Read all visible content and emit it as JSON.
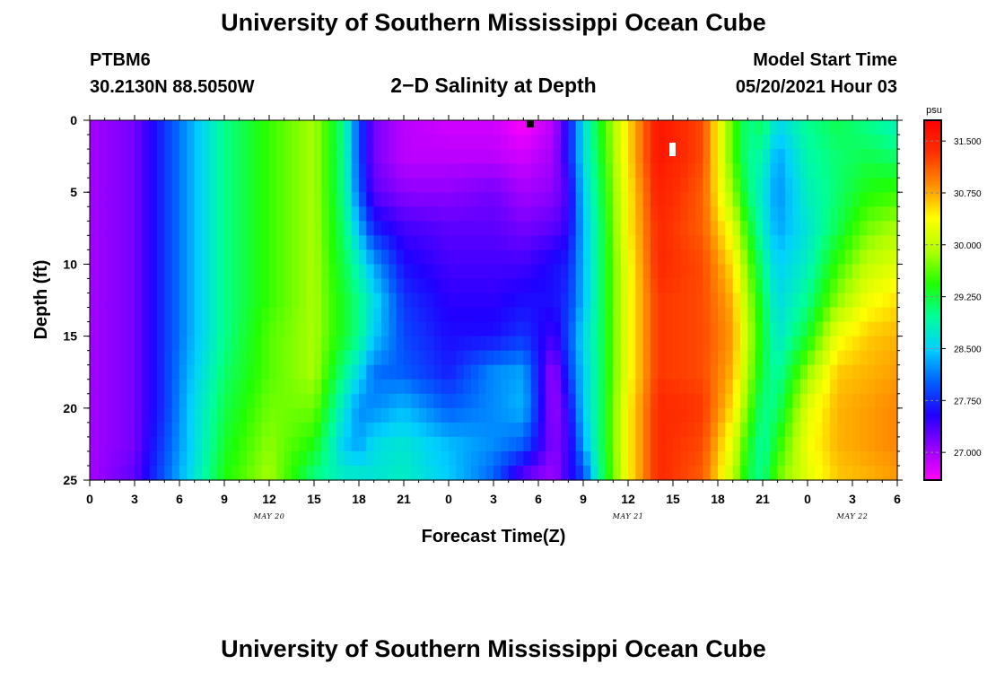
{
  "header": {
    "title": "University of Southern Mississippi Ocean Cube",
    "station_id": "PTBM6",
    "station_coords": "30.2130N  88.5050W",
    "plot_title": "2−D Salinity at Depth",
    "model_start_label": "Model Start Time",
    "model_start_time": "05/20/2021 Hour 03"
  },
  "footer": {
    "title": "University of Southern Mississippi Ocean Cube"
  },
  "chart_data": {
    "type": "heatmap",
    "title": "2−D Salinity at Depth",
    "xlabel": "Forecast Time(Z)",
    "ylabel": "Depth (ft)",
    "x_unit": "hours from 2021-05-20 00Z",
    "xlim": [
      0,
      54
    ],
    "ylim": [
      0,
      25
    ],
    "y_inverted": true,
    "x_ticks": [
      {
        "value": 0,
        "label": "0"
      },
      {
        "value": 3,
        "label": "3"
      },
      {
        "value": 6,
        "label": "6"
      },
      {
        "value": 9,
        "label": "9"
      },
      {
        "value": 12,
        "label": "12"
      },
      {
        "value": 15,
        "label": "15"
      },
      {
        "value": 18,
        "label": "18"
      },
      {
        "value": 21,
        "label": "21"
      },
      {
        "value": 24,
        "label": "0"
      },
      {
        "value": 27,
        "label": "3"
      },
      {
        "value": 30,
        "label": "6"
      },
      {
        "value": 33,
        "label": "9"
      },
      {
        "value": 36,
        "label": "12"
      },
      {
        "value": 39,
        "label": "15"
      },
      {
        "value": 42,
        "label": "18"
      },
      {
        "value": 45,
        "label": "21"
      },
      {
        "value": 48,
        "label": "0"
      },
      {
        "value": 51,
        "label": "3"
      },
      {
        "value": 54,
        "label": "6"
      }
    ],
    "x_minor_step": 1,
    "date_labels": [
      {
        "value": 12,
        "label": "MAY 20"
      },
      {
        "value": 36,
        "label": "MAY 21"
      },
      {
        "value": 51,
        "label": "MAY 22"
      }
    ],
    "y_ticks": [
      {
        "value": 0,
        "label": "0"
      },
      {
        "value": 5,
        "label": "5"
      },
      {
        "value": 10,
        "label": "10"
      },
      {
        "value": 15,
        "label": "15"
      },
      {
        "value": 20,
        "label": "20"
      },
      {
        "value": 25,
        "label": "25"
      }
    ],
    "y_minor_step": 1,
    "colorbar": {
      "unit": "psu",
      "min": 26.6,
      "max": 31.8,
      "ticks": [
        "31.500",
        "30.750",
        "30.000",
        "29.250",
        "28.500",
        "27.750",
        "27.000"
      ],
      "tick_values": [
        31.5,
        30.75,
        30.0,
        29.25,
        28.5,
        27.75,
        27.0
      ],
      "colors": [
        "#ff00ff",
        "#9400ff",
        "#2000ff",
        "#0060ff",
        "#00d0ff",
        "#00ff9a",
        "#20ff00",
        "#b0ff00",
        "#ffff00",
        "#ff9000",
        "#ff3000",
        "#ff0000"
      ]
    },
    "depth_levels": [
      0,
      2.5,
      5,
      7.5,
      10,
      12.5,
      15,
      17.5,
      20,
      22.5,
      25
    ],
    "time_columns": [
      {
        "t": 0,
        "s": [
          27.0,
          27.0,
          27.0,
          27.0,
          27.0,
          27.0,
          27.0,
          27.0,
          27.0,
          27.0,
          27.0
        ]
      },
      {
        "t": 3,
        "s": [
          27.2,
          27.2,
          27.2,
          27.2,
          27.2,
          27.2,
          27.2,
          27.2,
          27.2,
          27.2,
          27.3
        ]
      },
      {
        "t": 5,
        "s": [
          27.8,
          27.8,
          27.8,
          27.8,
          27.8,
          27.8,
          27.8,
          27.8,
          27.8,
          27.9,
          28.0
        ]
      },
      {
        "t": 7,
        "s": [
          28.4,
          28.4,
          28.4,
          28.4,
          28.4,
          28.4,
          28.4,
          28.5,
          28.6,
          28.6,
          28.7
        ]
      },
      {
        "t": 9,
        "s": [
          29.0,
          29.0,
          29.0,
          29.0,
          29.0,
          29.0,
          29.0,
          29.1,
          29.2,
          29.3,
          29.4
        ]
      },
      {
        "t": 12,
        "s": [
          29.5,
          29.5,
          29.5,
          29.5,
          29.5,
          29.5,
          29.6,
          29.6,
          29.7,
          29.8,
          29.9
        ]
      },
      {
        "t": 15,
        "s": [
          29.9,
          29.9,
          29.9,
          29.9,
          29.9,
          29.9,
          29.9,
          29.9,
          29.7,
          29.4,
          29.0
        ]
      },
      {
        "t": 17,
        "s": [
          29.0,
          29.0,
          29.0,
          29.1,
          29.2,
          29.3,
          29.3,
          29.0,
          28.7,
          28.5,
          28.8
        ]
      },
      {
        "t": 18,
        "s": [
          27.9,
          27.9,
          28.0,
          28.4,
          28.8,
          29.0,
          29.0,
          28.6,
          28.2,
          28.3,
          28.8
        ]
      },
      {
        "t": 19,
        "s": [
          27.2,
          27.2,
          27.3,
          27.7,
          28.3,
          28.6,
          28.5,
          28.1,
          28.2,
          28.6,
          28.7
        ]
      },
      {
        "t": 21,
        "s": [
          26.9,
          26.9,
          27.1,
          27.4,
          27.6,
          27.8,
          27.9,
          28.0,
          28.4,
          28.7,
          28.8
        ]
      },
      {
        "t": 24,
        "s": [
          26.8,
          26.9,
          27.1,
          27.3,
          27.4,
          27.5,
          27.6,
          27.7,
          28.0,
          28.4,
          28.5
        ]
      },
      {
        "t": 27,
        "s": [
          26.8,
          26.9,
          27.2,
          27.3,
          27.4,
          27.5,
          27.6,
          28.2,
          28.2,
          28.2,
          28.0
        ]
      },
      {
        "t": 29,
        "s": [
          26.6,
          26.8,
          27.0,
          27.2,
          27.4,
          27.6,
          27.8,
          28.3,
          28.4,
          28.0,
          27.2
        ]
      },
      {
        "t": 31,
        "s": [
          26.9,
          27.0,
          27.1,
          27.3,
          27.6,
          27.6,
          27.4,
          27.0,
          27.0,
          27.1,
          27.0
        ]
      },
      {
        "t": 32,
        "s": [
          27.6,
          27.6,
          27.4,
          27.5,
          27.7,
          27.8,
          27.9,
          27.8,
          27.5,
          27.4,
          27.5
        ]
      },
      {
        "t": 33,
        "s": [
          28.6,
          28.6,
          28.5,
          28.4,
          28.4,
          28.4,
          28.6,
          28.5,
          28.5,
          28.3,
          27.8
        ]
      },
      {
        "t": 34,
        "s": [
          29.3,
          29.2,
          29.1,
          29.0,
          29.0,
          29.0,
          29.0,
          29.0,
          29.0,
          29.0,
          28.9
        ]
      },
      {
        "t": 36,
        "s": [
          30.5,
          30.5,
          30.4,
          30.4,
          30.3,
          30.3,
          30.3,
          30.3,
          30.4,
          30.4,
          30.4
        ]
      },
      {
        "t": 38,
        "s": [
          31.6,
          31.6,
          31.5,
          31.4,
          31.4,
          31.3,
          31.3,
          31.3,
          31.4,
          31.4,
          31.4
        ]
      },
      {
        "t": 41,
        "s": [
          31.2,
          31.2,
          31.1,
          31.1,
          31.2,
          31.2,
          31.2,
          31.2,
          31.3,
          31.2,
          31.1
        ]
      },
      {
        "t": 43,
        "s": [
          29.6,
          29.6,
          29.8,
          30.2,
          30.5,
          30.7,
          30.8,
          30.7,
          30.5,
          30.2,
          30.0
        ]
      },
      {
        "t": 44,
        "s": [
          29.0,
          29.0,
          29.1,
          29.4,
          29.7,
          29.9,
          30.0,
          29.9,
          29.7,
          29.4,
          29.2
        ]
      },
      {
        "t": 45,
        "s": [
          29.2,
          28.9,
          28.7,
          28.8,
          29.0,
          29.2,
          29.3,
          29.2,
          29.0,
          28.9,
          29.0
        ]
      },
      {
        "t": 46,
        "s": [
          28.6,
          28.3,
          28.2,
          28.3,
          28.5,
          28.6,
          28.7,
          28.9,
          29.1,
          29.4,
          29.7
        ]
      },
      {
        "t": 48,
        "s": [
          29.0,
          28.9,
          28.8,
          28.7,
          28.8,
          29.0,
          29.3,
          29.8,
          30.2,
          30.3,
          30.2
        ]
      },
      {
        "t": 50,
        "s": [
          29.2,
          29.1,
          29.1,
          29.2,
          29.5,
          29.8,
          30.3,
          30.6,
          30.7,
          30.7,
          30.6
        ]
      },
      {
        "t": 52,
        "s": [
          29.0,
          29.2,
          29.4,
          29.7,
          30.0,
          30.3,
          30.6,
          30.7,
          30.8,
          30.8,
          30.7
        ]
      },
      {
        "t": 54,
        "s": [
          28.8,
          29.1,
          29.5,
          29.9,
          30.2,
          30.5,
          30.7,
          30.8,
          30.9,
          30.9,
          30.8
        ]
      }
    ]
  }
}
